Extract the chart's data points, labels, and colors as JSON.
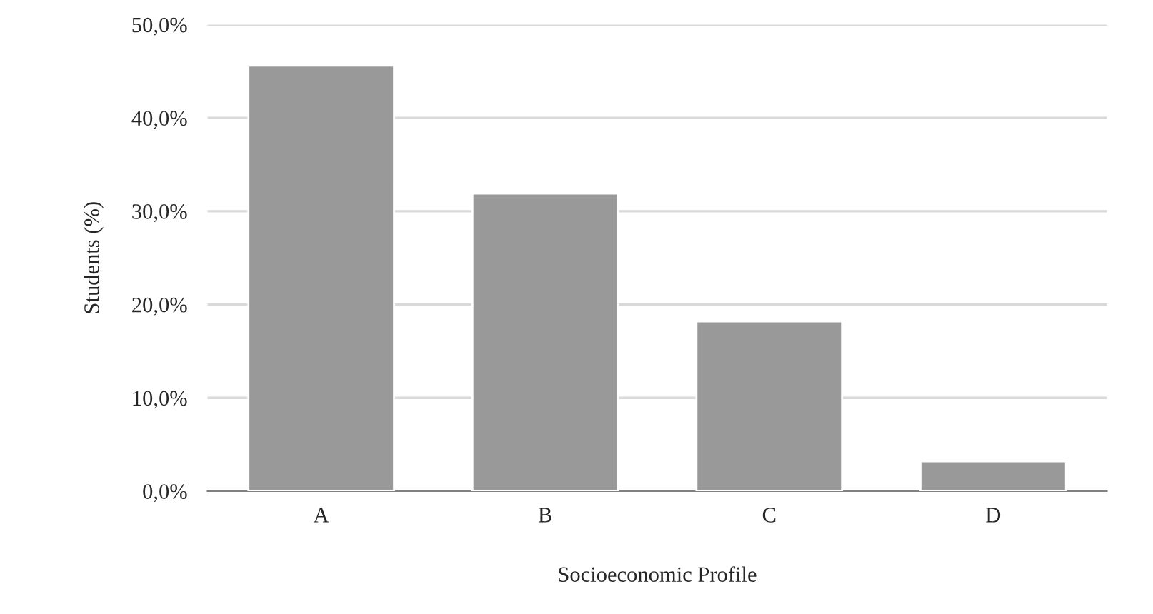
{
  "chart_data": {
    "type": "bar",
    "xlabel": "Socioeconomic Profile",
    "ylabel": "Students (%)",
    "categories": [
      "A",
      "B",
      "C",
      "D"
    ],
    "values": [
      45.6,
      31.9,
      18.2,
      3.2
    ],
    "color": "#999999",
    "ylim": [
      0,
      50
    ],
    "yticks": [
      {
        "value": 0,
        "label": "0,0%"
      },
      {
        "value": 10,
        "label": "10,0%"
      },
      {
        "value": 20,
        "label": "20,0%"
      },
      {
        "value": 30,
        "label": "30,0%"
      },
      {
        "value": 40,
        "label": "40,0%"
      },
      {
        "value": 50,
        "label": "50,0%"
      }
    ],
    "grid": "y",
    "legend": false
  }
}
